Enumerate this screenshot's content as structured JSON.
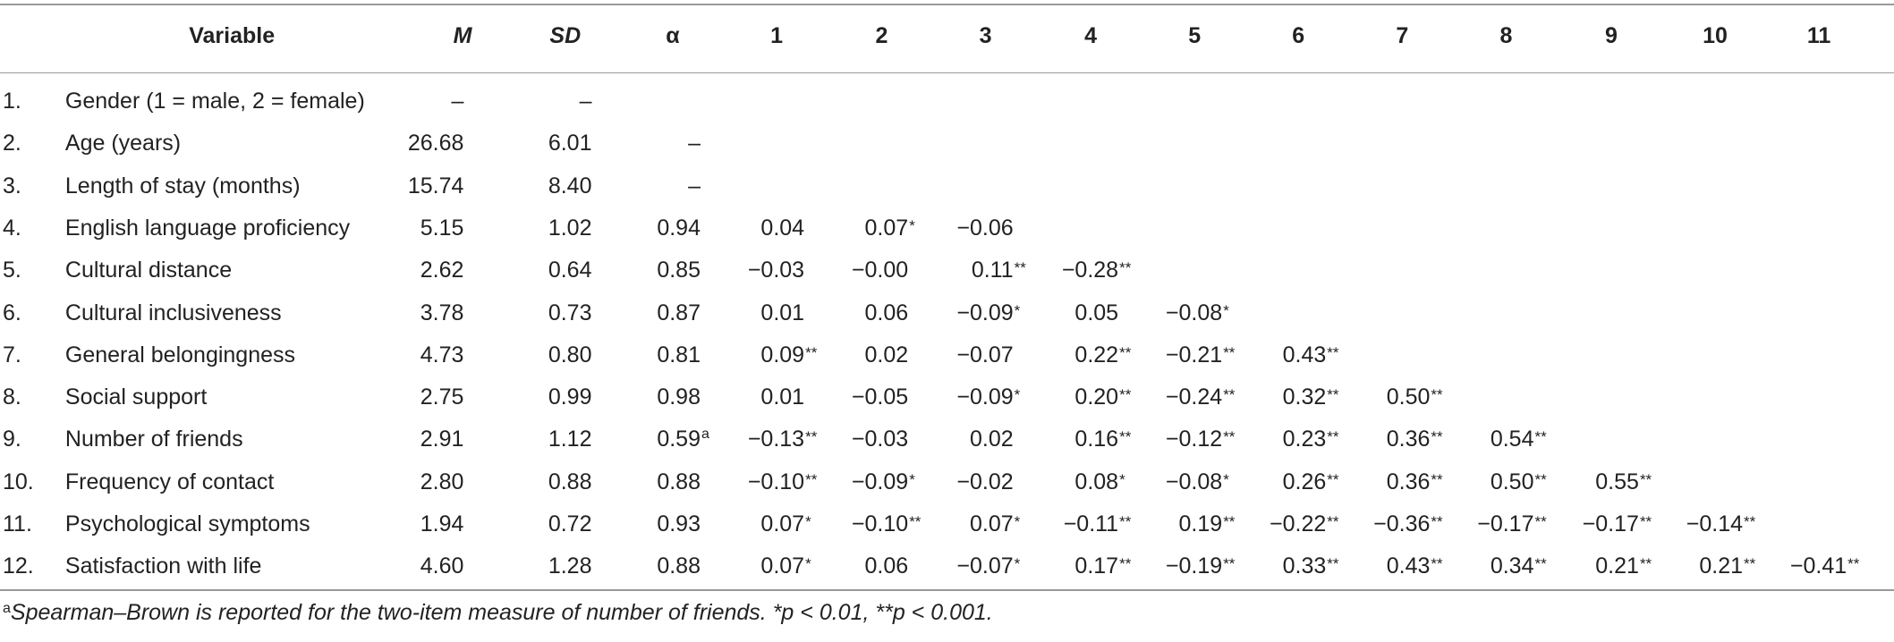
{
  "table": {
    "columns": [
      "Variable",
      "M",
      "SD",
      "α",
      "1",
      "2",
      "3",
      "4",
      "5",
      "6",
      "7",
      "8",
      "9",
      "10",
      "11"
    ],
    "rows": [
      {
        "number": "1.",
        "variable": "Gender (1 = male, 2 = female)",
        "cells": [
          "–",
          "–"
        ]
      },
      {
        "number": "2.",
        "variable": "Age (years)",
        "cells": [
          "26.68",
          "6.01",
          "–"
        ]
      },
      {
        "number": "3.",
        "variable": "Length of stay (months)",
        "cells": [
          "15.74",
          "8.40",
          "–"
        ]
      },
      {
        "number": "4.",
        "variable": "English language proficiency",
        "cells": [
          "5.15",
          "1.02",
          "0.94",
          "0.04",
          "0.07*",
          "−0.06"
        ]
      },
      {
        "number": "5.",
        "variable": "Cultural distance",
        "cells": [
          "2.62",
          "0.64",
          "0.85",
          "−0.03",
          "−0.00",
          "0.11**",
          "−0.28**"
        ]
      },
      {
        "number": "6.",
        "variable": "Cultural inclusiveness",
        "cells": [
          "3.78",
          "0.73",
          "0.87",
          "0.01",
          "0.06",
          "−0.09*",
          "0.05",
          "−0.08*"
        ]
      },
      {
        "number": "7.",
        "variable": "General belongingness",
        "cells": [
          "4.73",
          "0.80",
          "0.81",
          "0.09**",
          "0.02",
          "−0.07",
          "0.22**",
          "−0.21**",
          "0.43**"
        ]
      },
      {
        "number": "8.",
        "variable": "Social support",
        "cells": [
          "2.75",
          "0.99",
          "0.98",
          "0.01",
          "−0.05",
          "−0.09*",
          "0.20**",
          "−0.24**",
          "0.32**",
          "0.50**"
        ]
      },
      {
        "number": "9.",
        "variable": "Number of friends",
        "cells": [
          "2.91",
          "1.12",
          {
            "value": "0.59",
            "note": "a"
          },
          "−0.13**",
          "−0.03",
          "0.02",
          "0.16**",
          "−0.12**",
          "0.23**",
          "0.36**",
          "0.54**"
        ]
      },
      {
        "number": "10.",
        "variable": "Frequency of contact",
        "cells": [
          "2.80",
          "0.88",
          "0.88",
          "−0.10**",
          "−0.09*",
          "−0.02",
          "0.08*",
          "−0.08*",
          "0.26**",
          "0.36**",
          "0.50**",
          "0.55**"
        ]
      },
      {
        "number": "11.",
        "variable": "Psychological symptoms",
        "cells": [
          "1.94",
          "0.72",
          "0.93",
          "0.07*",
          "−0.10**",
          "0.07*",
          "−0.11**",
          "0.19**",
          "−0.22**",
          "−0.36**",
          "−0.17**",
          "−0.17**",
          "−0.14**"
        ]
      },
      {
        "number": "12.",
        "variable": "Satisfaction with life",
        "cells": [
          "4.60",
          "1.28",
          "0.88",
          "0.07*",
          "0.06",
          "−0.07*",
          "0.17**",
          "−0.19**",
          "0.33**",
          "0.43**",
          "0.34**",
          "0.21**",
          "0.21**",
          "−0.41**"
        ]
      }
    ]
  },
  "footnote": {
    "note": "a",
    "text": "Spearman–Brown is reported for the two-item measure of number of friends. *p < 0.01, **p < 0.001."
  }
}
